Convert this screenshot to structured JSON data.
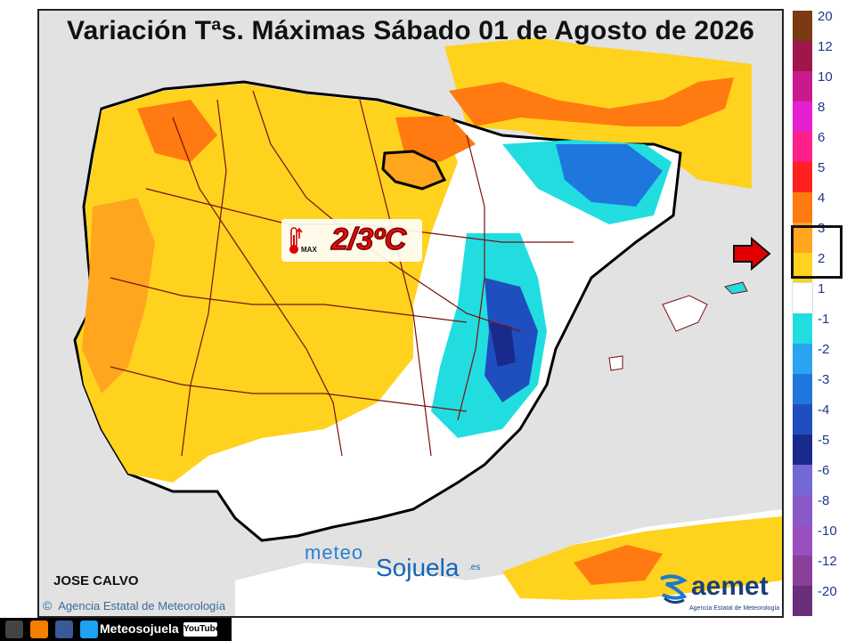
{
  "header": {
    "title": "Variación Tªs. Máximas Sábado 01 de Agosto de 2026"
  },
  "highlight": {
    "value_text": "2/3ºC",
    "max_label": "MAX",
    "highlighted_range": [
      "2",
      "3"
    ]
  },
  "credits": {
    "author": "JOSE CALVO",
    "agency_copyright": "©",
    "agency_text": "Agencia Estatal de Meteorología"
  },
  "logos": {
    "meteo_part1": "meteo",
    "meteo_part2": "Sojuela",
    "meteo_domain": ".es",
    "aemet_name": "aemet",
    "aemet_sub": "Agencia Estatal de Meteorología"
  },
  "legend": {
    "items": [
      {
        "label": "20",
        "color": "#7a3b12"
      },
      {
        "label": "12",
        "color": "#a0154a"
      },
      {
        "label": "10",
        "color": "#c81a8c"
      },
      {
        "label": "8",
        "color": "#e61fd1"
      },
      {
        "label": "6",
        "color": "#ff1f8a"
      },
      {
        "label": "5",
        "color": "#ff2020"
      },
      {
        "label": "4",
        "color": "#ff7a10"
      },
      {
        "label": "3",
        "color": "#ffa51e"
      },
      {
        "label": "2",
        "color": "#ffd21e"
      },
      {
        "label": "1",
        "color": "#ffffff"
      },
      {
        "label": "-1",
        "color": "#22dde0"
      },
      {
        "label": "-2",
        "color": "#2aa4f0"
      },
      {
        "label": "-3",
        "color": "#1f77dd"
      },
      {
        "label": "-4",
        "color": "#1f4fbf"
      },
      {
        "label": "-5",
        "color": "#1a2a8c"
      },
      {
        "label": "-6",
        "color": "#7468d6"
      },
      {
        "label": "-8",
        "color": "#8a58c8"
      },
      {
        "label": "-10",
        "color": "#9a4fbf"
      },
      {
        "label": "-12",
        "color": "#8a3f9a"
      },
      {
        "label": "-20",
        "color": "#6a2f7a"
      }
    ]
  },
  "footer": {
    "brand": "Meteosojuela",
    "youtube": "YouTube"
  },
  "colors": {
    "sea": "#e2e2e2",
    "land_warm": "#ffd21e",
    "land_hot": "#ff7a10",
    "land_very_hot": "#ff2020",
    "land_neutral": "#ffffff",
    "land_cool": "#22dde0",
    "land_cold": "#1f4fbf",
    "border": "#7a1010",
    "la_rioja_outline": "#000000",
    "highlight_red": "#e10d0d"
  }
}
